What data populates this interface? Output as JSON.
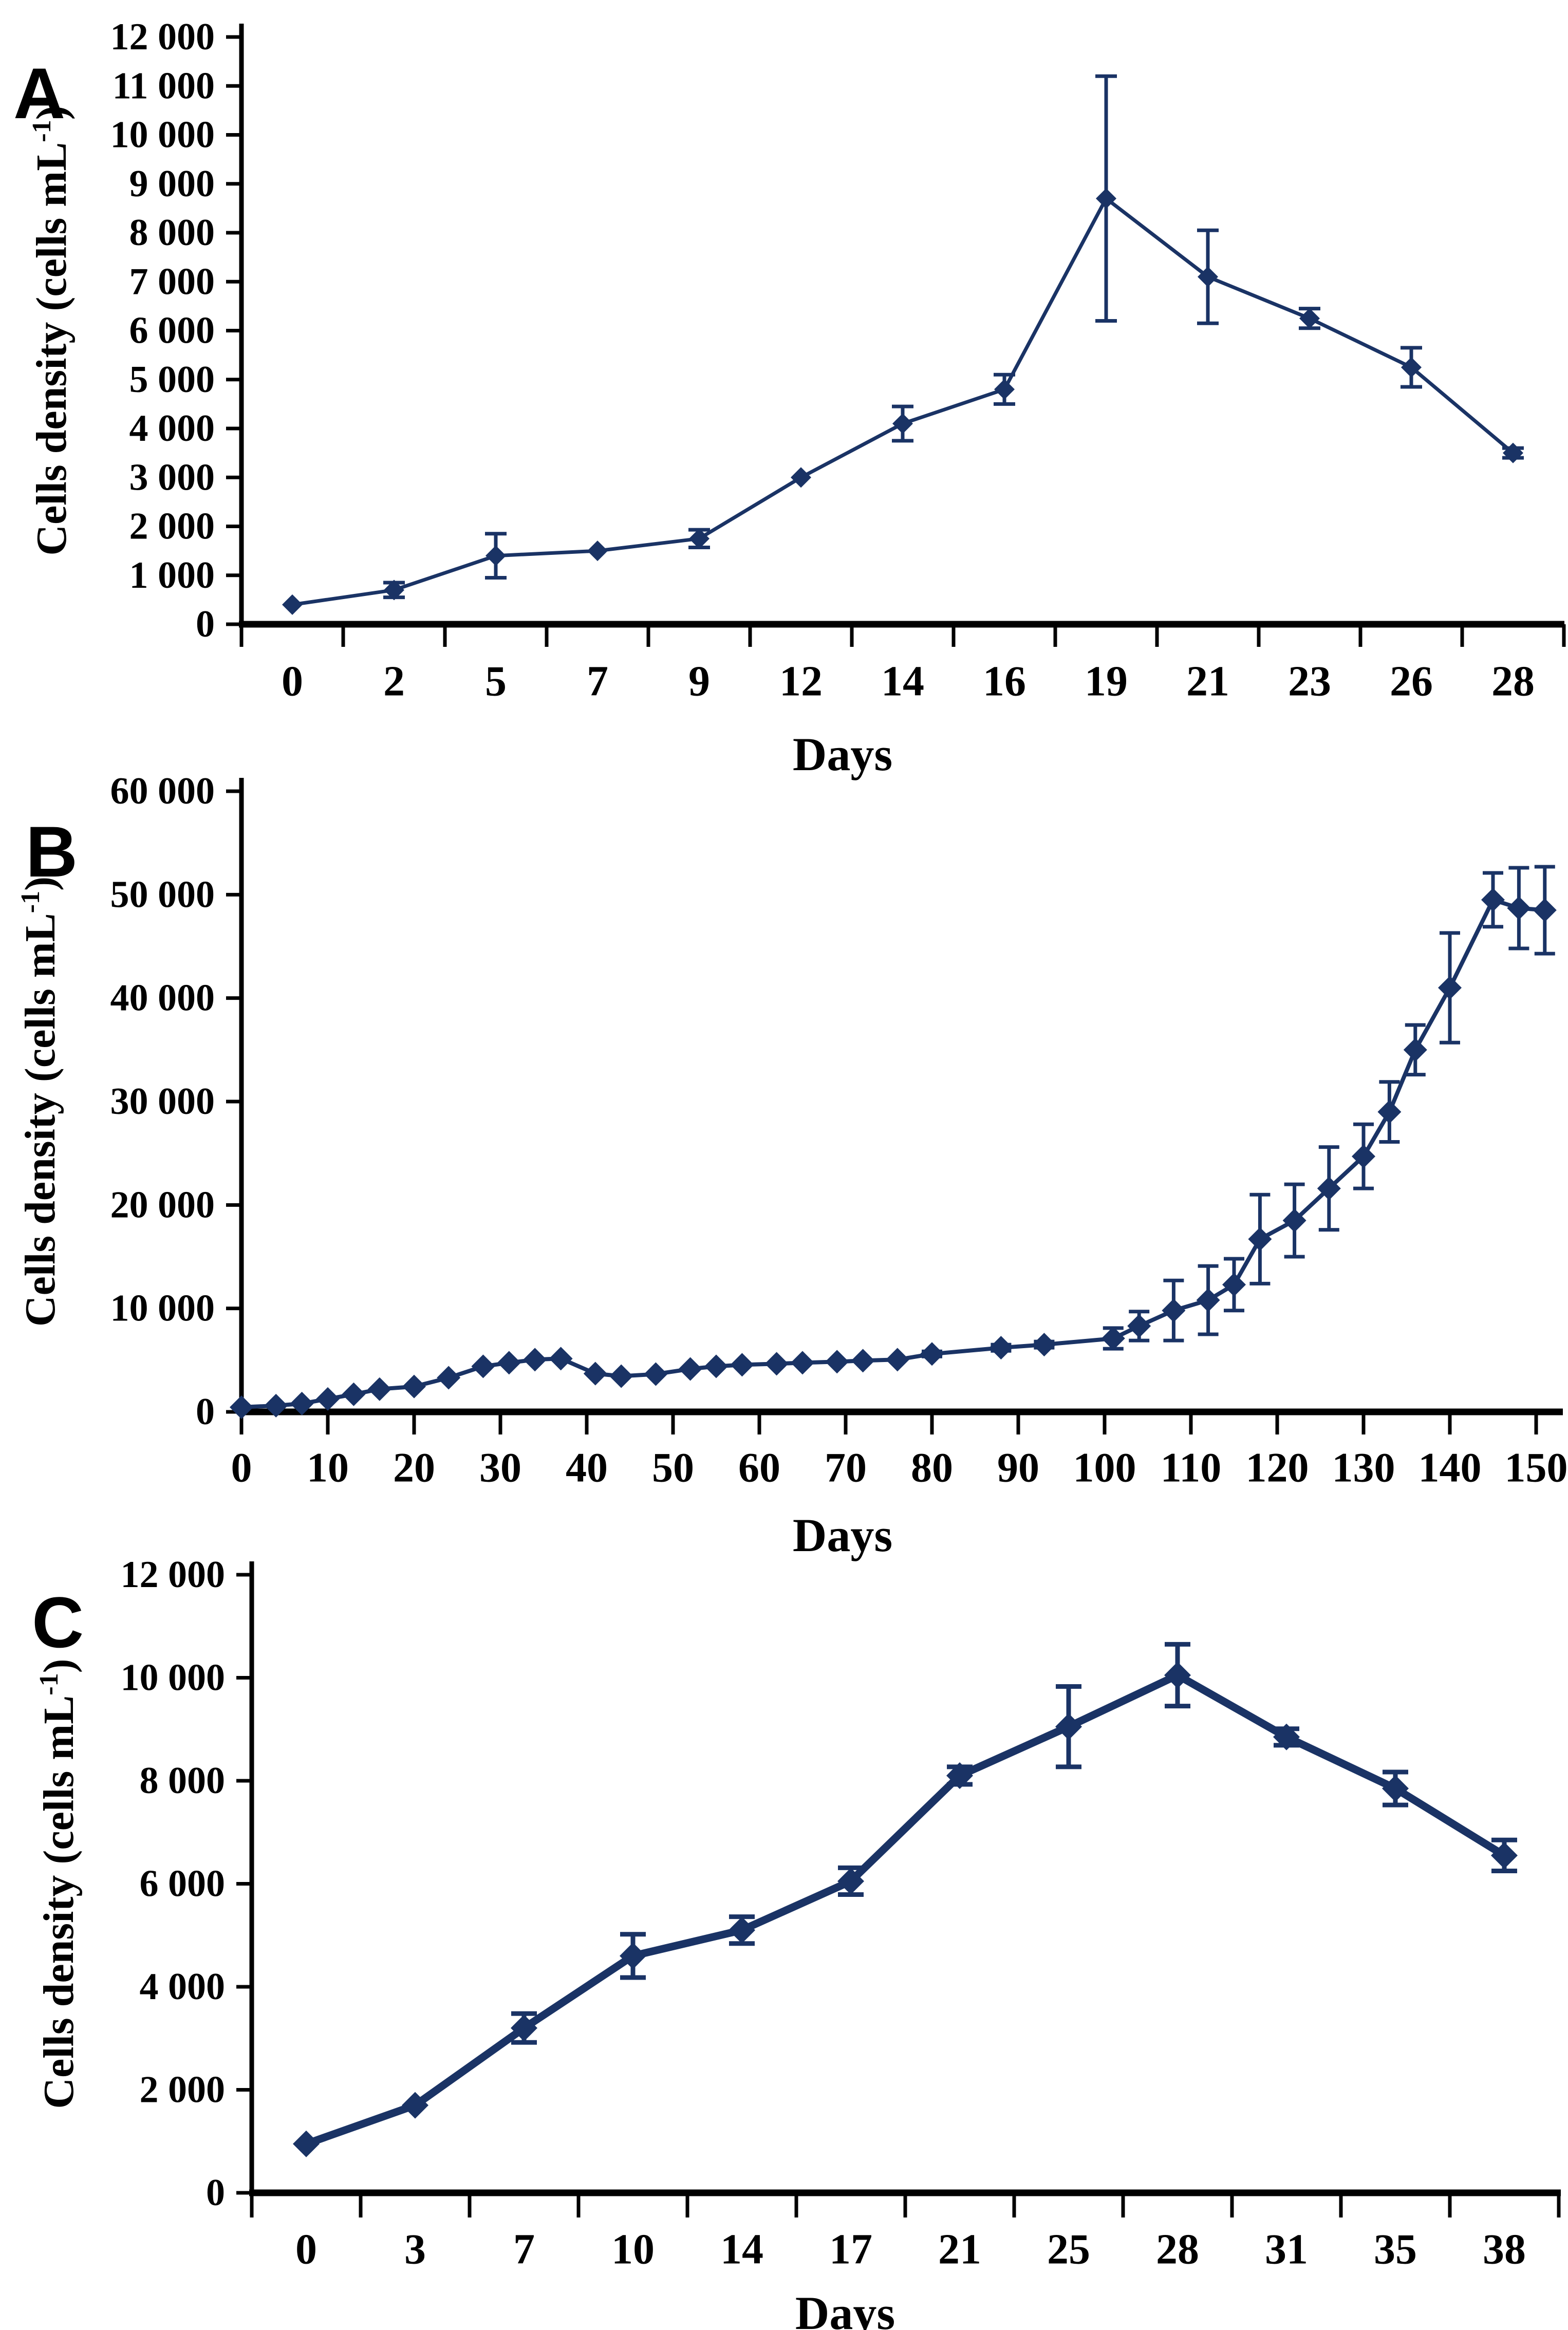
{
  "figure": {
    "background": "#ffffff",
    "series_color": "#1A3365",
    "axis_color": "#000000"
  },
  "chart_data": [
    {
      "id": "A",
      "panel_label": "A",
      "type": "line",
      "x_axis_type": "category",
      "marker": "diamond",
      "error_bars": true,
      "xlabel": "Days",
      "ylabel": "Cells density (cells mL",
      "ylabel_sup": "-1",
      "ylabel_close": ")",
      "categories": [
        "0",
        "2",
        "5",
        "7",
        "9",
        "12",
        "14",
        "16",
        "19",
        "21",
        "23",
        "26",
        "28"
      ],
      "x": [
        0,
        2,
        5,
        7,
        9,
        12,
        14,
        16,
        19,
        21,
        23,
        26,
        28
      ],
      "values": [
        400,
        700,
        1400,
        1500,
        1750,
        3000,
        4100,
        4800,
        8700,
        7100,
        6250,
        5250,
        3500
      ],
      "errors": [
        0,
        150,
        450,
        0,
        180,
        0,
        350,
        300,
        2500,
        950,
        200,
        400,
        100
      ],
      "ylim": [
        0,
        12000
      ],
      "ytick_step": 1000,
      "ytick_labels": [
        "0",
        "1 000",
        "2 000",
        "3 000",
        "4 000",
        "5 000",
        "6 000",
        "7 000",
        "8 000",
        "9 000",
        "10 000",
        "11 000",
        "12 000"
      ]
    },
    {
      "id": "B",
      "panel_label": "B",
      "type": "line",
      "x_axis_type": "value",
      "marker": "diamond",
      "error_bars": true,
      "xlabel": "Days",
      "ylabel": "Cells density (cells mL",
      "ylabel_sup": "-1",
      "ylabel_close": ")",
      "xlim": [
        0,
        150
      ],
      "xtick_step": 10,
      "xtick_labels": [
        "0",
        "10",
        "20",
        "30",
        "40",
        "50",
        "60",
        "70",
        "80",
        "90",
        "100",
        "110",
        "120",
        "130",
        "140",
        "150"
      ],
      "x": [
        0,
        4,
        7,
        10,
        13,
        16,
        20,
        24,
        28,
        31,
        34,
        37,
        41,
        44,
        48,
        52,
        55,
        58,
        62,
        65,
        69,
        72,
        76,
        80,
        88,
        93,
        101,
        104,
        108,
        112,
        115,
        118,
        122,
        126,
        130,
        133,
        136,
        140,
        145,
        148,
        151
      ],
      "values": [
        450,
        600,
        800,
        1250,
        1700,
        2200,
        2450,
        3300,
        4400,
        4750,
        5050,
        5150,
        3700,
        3450,
        3650,
        4150,
        4400,
        4550,
        4650,
        4750,
        4850,
        4950,
        5050,
        5600,
        6200,
        6500,
        7100,
        8300,
        9800,
        10800,
        12300,
        16700,
        18500,
        21600,
        24700,
        29000,
        35000,
        41000,
        49500,
        48700,
        48500
      ],
      "errors": [
        0,
        0,
        0,
        0,
        0,
        0,
        0,
        0,
        0,
        0,
        0,
        0,
        0,
        0,
        0,
        0,
        0,
        0,
        0,
        0,
        0,
        0,
        0,
        250,
        300,
        300,
        1000,
        1400,
        2900,
        3300,
        2500,
        4300,
        3500,
        4000,
        3100,
        2900,
        2400,
        5300,
        2600,
        3900,
        4200
      ],
      "ylim": [
        0,
        60000
      ],
      "ytick_step": 10000,
      "ytick_labels": [
        "0",
        "10 000",
        "20 000",
        "30 000",
        "40 000",
        "50 000",
        "60 000"
      ]
    },
    {
      "id": "C",
      "panel_label": "C",
      "type": "line",
      "x_axis_type": "category",
      "marker": "diamond",
      "error_bars": true,
      "xlabel": "Days",
      "ylabel": "Cells density (cells mL",
      "ylabel_sup": "-1",
      "ylabel_close": ")",
      "categories": [
        "0",
        "3",
        "7",
        "10",
        "14",
        "17",
        "21",
        "25",
        "28",
        "31",
        "35",
        "38"
      ],
      "x": [
        0,
        3,
        7,
        10,
        14,
        17,
        21,
        25,
        28,
        31,
        35,
        38
      ],
      "values": [
        950,
        1700,
        3200,
        4600,
        5100,
        6050,
        8100,
        9050,
        10050,
        8850,
        7850,
        6550
      ],
      "errors": [
        0,
        0,
        280,
        420,
        260,
        260,
        170,
        780,
        600,
        160,
        320,
        300
      ],
      "ylim": [
        0,
        12000
      ],
      "ytick_step": 2000,
      "ytick_labels": [
        "0",
        "2 000",
        "4 000",
        "6 000",
        "8 000",
        "10 000",
        "12 000"
      ]
    }
  ]
}
